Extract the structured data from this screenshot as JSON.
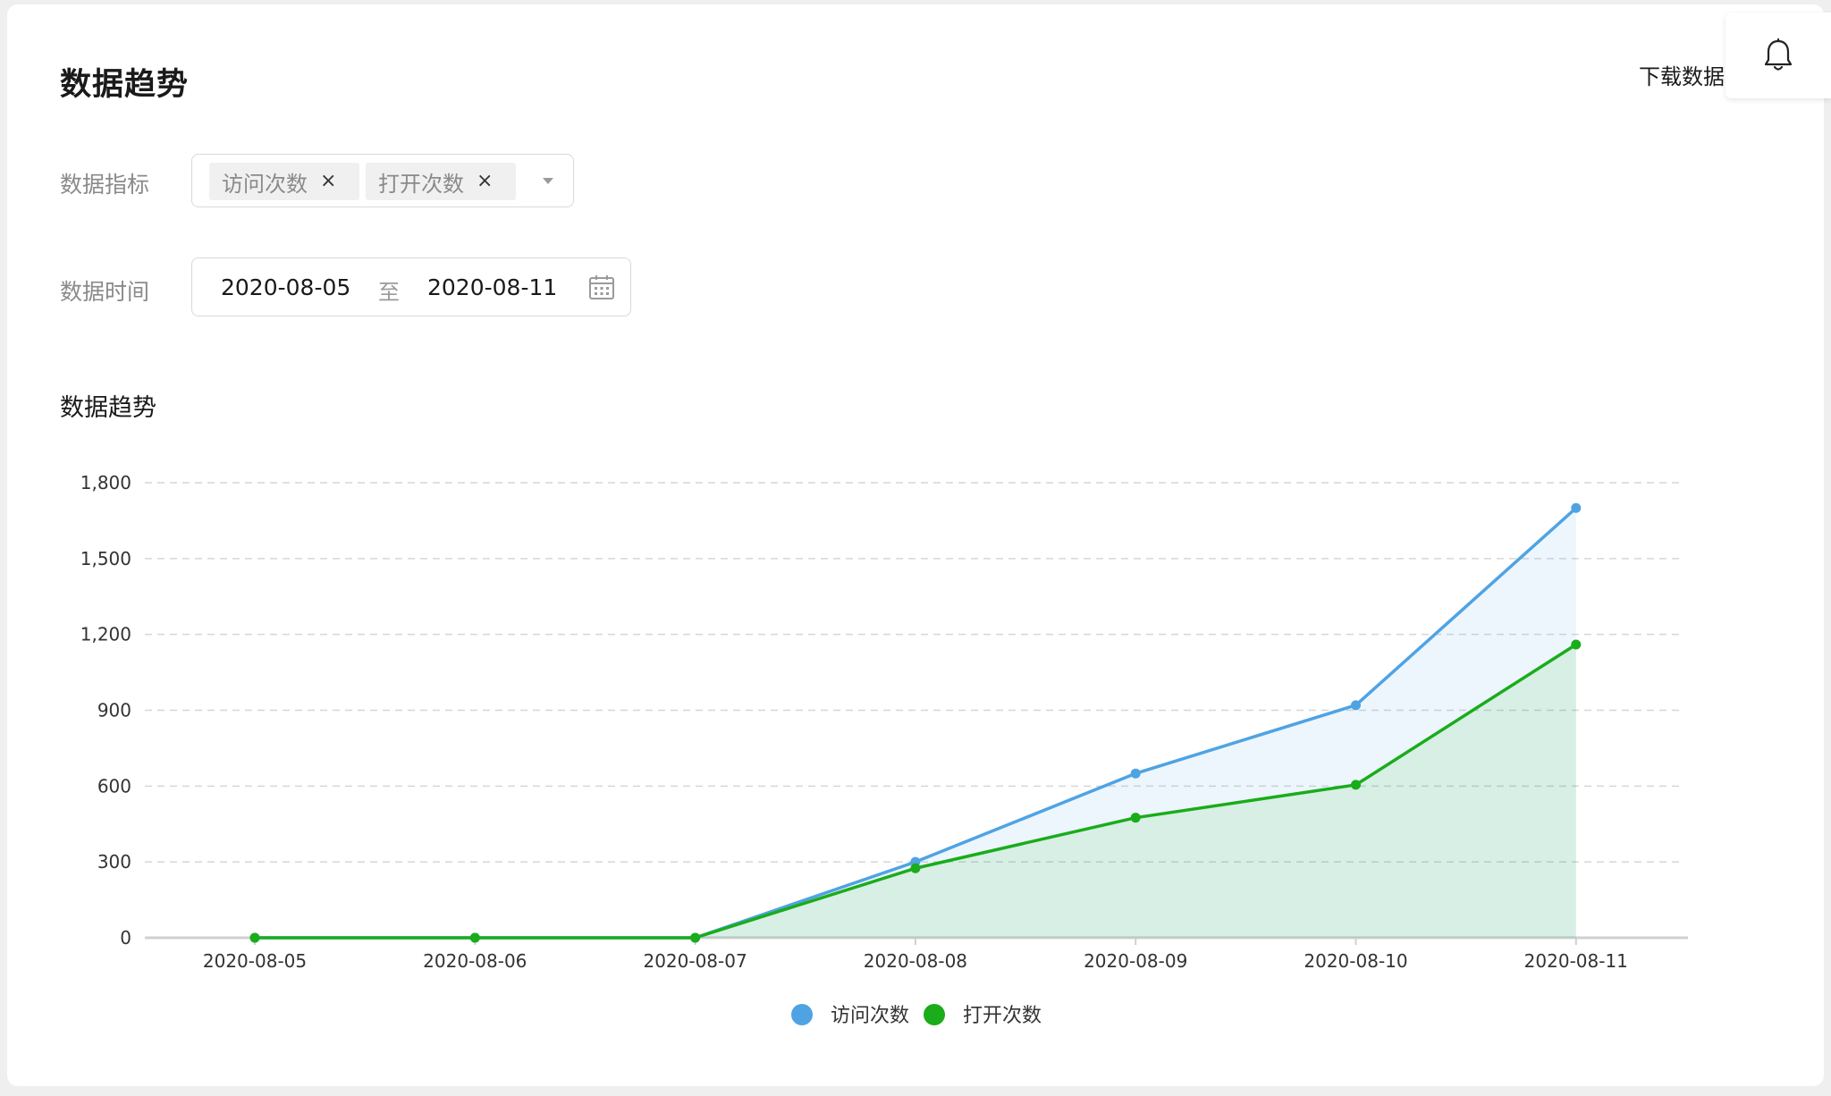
{
  "header": {
    "title": "数据趋势",
    "download_label": "下载数据",
    "bell_icon": "bell-icon"
  },
  "filters": {
    "metric_label": "数据指标",
    "metric_tags": [
      "访问次数",
      "打开次数"
    ],
    "time_label": "数据时间",
    "date_start": "2020-08-05",
    "date_separator": "至",
    "date_end": "2020-08-11",
    "calendar_icon": "calendar-icon",
    "dropdown_icon": "caret-down-icon"
  },
  "chart_section": {
    "title": "数据趋势"
  },
  "chart_data": {
    "type": "area",
    "categories": [
      "2020-08-05",
      "2020-08-06",
      "2020-08-07",
      "2020-08-08",
      "2020-08-09",
      "2020-08-10",
      "2020-08-11"
    ],
    "series": [
      {
        "name": "访问次数",
        "color": "#4fa3e3",
        "values": [
          0,
          0,
          0,
          300,
          650,
          920,
          1700
        ]
      },
      {
        "name": "打开次数",
        "color": "#1aac1a",
        "values": [
          0,
          0,
          0,
          275,
          475,
          605,
          1160
        ]
      }
    ],
    "yticks": [
      "0",
      "300",
      "600",
      "900",
      "1,200",
      "1,500",
      "1,800"
    ],
    "ylim": [
      0,
      1800
    ],
    "grid": true,
    "legend_position": "bottom"
  }
}
